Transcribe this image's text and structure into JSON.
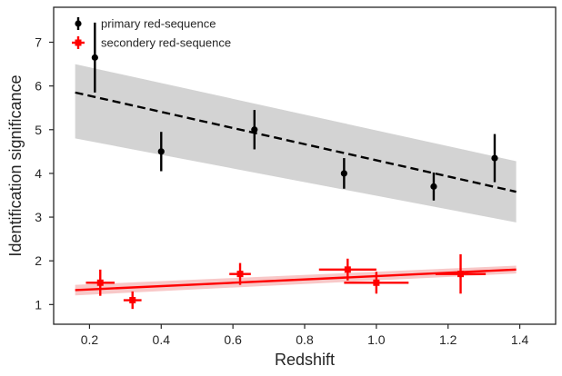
{
  "chart_data": {
    "type": "scatter",
    "title": "",
    "xlabel": "Redshift",
    "ylabel": "Identification significance",
    "xlim": [
      0.1,
      1.5
    ],
    "ylim": [
      0.55,
      7.8
    ],
    "xticks": [
      0.2,
      0.4,
      0.6,
      0.8,
      1.0,
      1.2,
      1.4
    ],
    "xtick_labels": [
      "0.2",
      "0.4",
      "0.6",
      "0.8",
      "1.0",
      "1.2",
      "1.4"
    ],
    "yticks": [
      1,
      2,
      3,
      4,
      5,
      6,
      7
    ],
    "ytick_labels": [
      "1",
      "2",
      "3",
      "4",
      "5",
      "6",
      "7"
    ],
    "grid": false,
    "legend_position": "top-left",
    "series": [
      {
        "name": "primary red-sequence",
        "color": "#000000",
        "marker": "circle",
        "points": [
          {
            "x": 0.215,
            "y": 6.65,
            "xerr": 0,
            "yerr": 0.8
          },
          {
            "x": 0.4,
            "y": 4.5,
            "xerr": 0,
            "yerr": 0.45
          },
          {
            "x": 0.66,
            "y": 5.0,
            "xerr": 0,
            "yerr": 0.45
          },
          {
            "x": 0.91,
            "y": 4.0,
            "xerr": 0,
            "yerr": 0.35
          },
          {
            "x": 1.16,
            "y": 3.7,
            "xerr": 0,
            "yerr": 0.32
          },
          {
            "x": 1.33,
            "y": 4.35,
            "xerr": 0,
            "yerr": 0.55
          }
        ],
        "fit": {
          "x": [
            0.16,
            1.39
          ],
          "y": [
            5.85,
            3.58
          ],
          "style": "dashed"
        },
        "band": {
          "x": [
            0.16,
            1.39
          ],
          "lower": [
            4.8,
            2.88
          ],
          "upper": [
            6.5,
            4.28
          ],
          "color": "#d3d3d3"
        }
      },
      {
        "name": "secondery red-sequence",
        "color": "#ff0000",
        "marker": "square",
        "points": [
          {
            "x": 0.23,
            "y": 1.5,
            "xerr": 0.04,
            "yerr": 0.3
          },
          {
            "x": 0.32,
            "y": 1.1,
            "xerr": 0.025,
            "yerr": 0.2
          },
          {
            "x": 0.62,
            "y": 1.7,
            "xerr": 0.03,
            "yerr": 0.25
          },
          {
            "x": 0.92,
            "y": 1.8,
            "xerr": 0.08,
            "yerr": 0.25
          },
          {
            "x": 1.0,
            "y": 1.5,
            "xerr": 0.09,
            "yerr": 0.25
          },
          {
            "x": 1.235,
            "y": 1.7,
            "xerr": 0.07,
            "yerr": 0.45
          }
        ],
        "fit": {
          "x": [
            0.16,
            1.39
          ],
          "y": [
            1.33,
            1.8
          ],
          "style": "solid"
        },
        "band": {
          "x": [
            0.16,
            1.39
          ],
          "lower": [
            1.21,
            1.71
          ],
          "upper": [
            1.45,
            1.89
          ],
          "color": "#f8c8c8"
        }
      }
    ]
  }
}
